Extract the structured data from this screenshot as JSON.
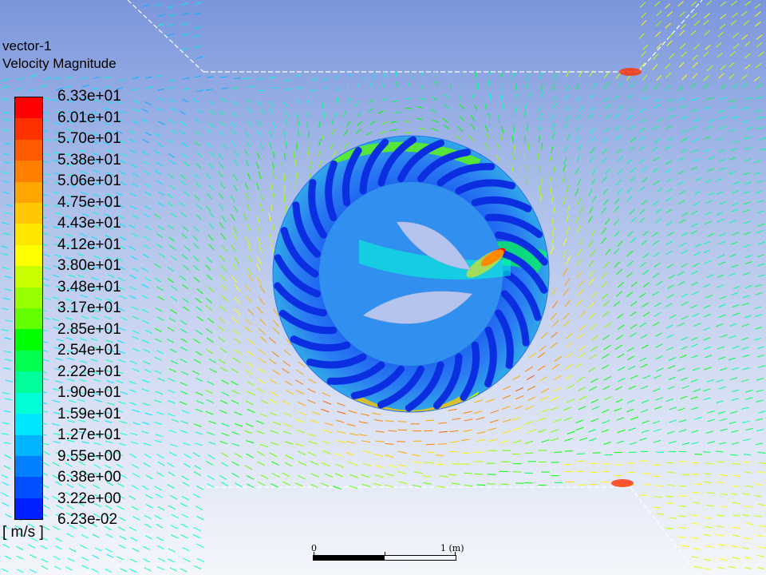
{
  "legend": {
    "name": "vector-1",
    "quantity": "Velocity Magnitude",
    "units": "[ m/s ]",
    "ticks": [
      "6.33e+01",
      "6.01e+01",
      "5.70e+01",
      "5.38e+01",
      "5.06e+01",
      "4.75e+01",
      "4.43e+01",
      "4.12e+01",
      "3.80e+01",
      "3.48e+01",
      "3.17e+01",
      "2.85e+01",
      "2.54e+01",
      "2.22e+01",
      "1.90e+01",
      "1.59e+01",
      "1.27e+01",
      "9.55e+00",
      "6.38e+00",
      "3.22e+00",
      "6.23e-02"
    ],
    "colors": [
      "#ff0000",
      "#ff3000",
      "#ff5a00",
      "#ff8000",
      "#ffa500",
      "#ffc800",
      "#ffe600",
      "#ffff00",
      "#c8ff00",
      "#96ff00",
      "#64ff00",
      "#00ff00",
      "#00ff50",
      "#00ff9b",
      "#00ffd7",
      "#00e6ff",
      "#00b4ff",
      "#0080ff",
      "#0050ff",
      "#0020ff"
    ],
    "max": 63.3,
    "min": 0.0623
  },
  "scale": {
    "zero_label": "0",
    "one_label": "1 (m)"
  }
}
